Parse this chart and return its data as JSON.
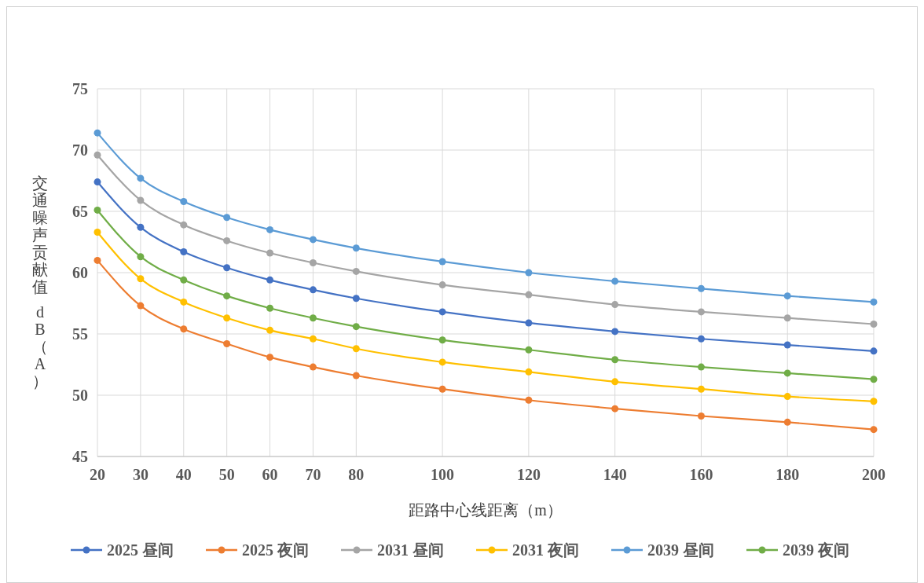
{
  "chart_data": {
    "type": "line",
    "xlabel": "距路中心线距离（m）",
    "ylabel": "交通噪声贡献值 dB（A）",
    "x": [
      20,
      30,
      40,
      50,
      60,
      70,
      80,
      100,
      120,
      140,
      160,
      180,
      200
    ],
    "xlim": [
      20,
      200
    ],
    "xticks": [
      20,
      30,
      40,
      50,
      60,
      70,
      80,
      100,
      120,
      140,
      160,
      180,
      200
    ],
    "ylim": [
      45,
      75
    ],
    "yticks": [
      45,
      50,
      55,
      60,
      65,
      70,
      75
    ],
    "grid": true,
    "legend": "bottom",
    "marker": "circle",
    "line_style": "solid",
    "series": [
      {
        "name": "2025 昼间",
        "color": "#4472c4",
        "values": [
          67.4,
          63.7,
          61.7,
          60.4,
          59.4,
          58.6,
          57.9,
          56.8,
          55.9,
          55.2,
          54.6,
          54.1,
          53.6
        ]
      },
      {
        "name": "2025 夜间",
        "color": "#ed7d31",
        "values": [
          61.0,
          57.3,
          55.4,
          54.2,
          53.1,
          52.3,
          51.6,
          50.5,
          49.6,
          48.9,
          48.3,
          47.8,
          47.2
        ]
      },
      {
        "name": "2031 昼间",
        "color": "#a5a5a5",
        "values": [
          69.6,
          65.9,
          63.9,
          62.6,
          61.6,
          60.8,
          60.1,
          59.0,
          58.2,
          57.4,
          56.8,
          56.3,
          55.8
        ]
      },
      {
        "name": "2031 夜间",
        "color": "#ffc000",
        "values": [
          63.3,
          59.5,
          57.6,
          56.3,
          55.3,
          54.6,
          53.8,
          52.7,
          51.9,
          51.1,
          50.5,
          49.9,
          49.5
        ]
      },
      {
        "name": "2039 昼间",
        "color": "#5b9bd5",
        "values": [
          71.4,
          67.7,
          65.8,
          64.5,
          63.5,
          62.7,
          62.0,
          60.9,
          60.0,
          59.3,
          58.7,
          58.1,
          57.6
        ]
      },
      {
        "name": "2039 夜间",
        "color": "#70ad47",
        "values": [
          65.1,
          61.3,
          59.4,
          58.1,
          57.1,
          56.3,
          55.6,
          54.5,
          53.7,
          52.9,
          52.3,
          51.8,
          51.3
        ]
      }
    ]
  }
}
